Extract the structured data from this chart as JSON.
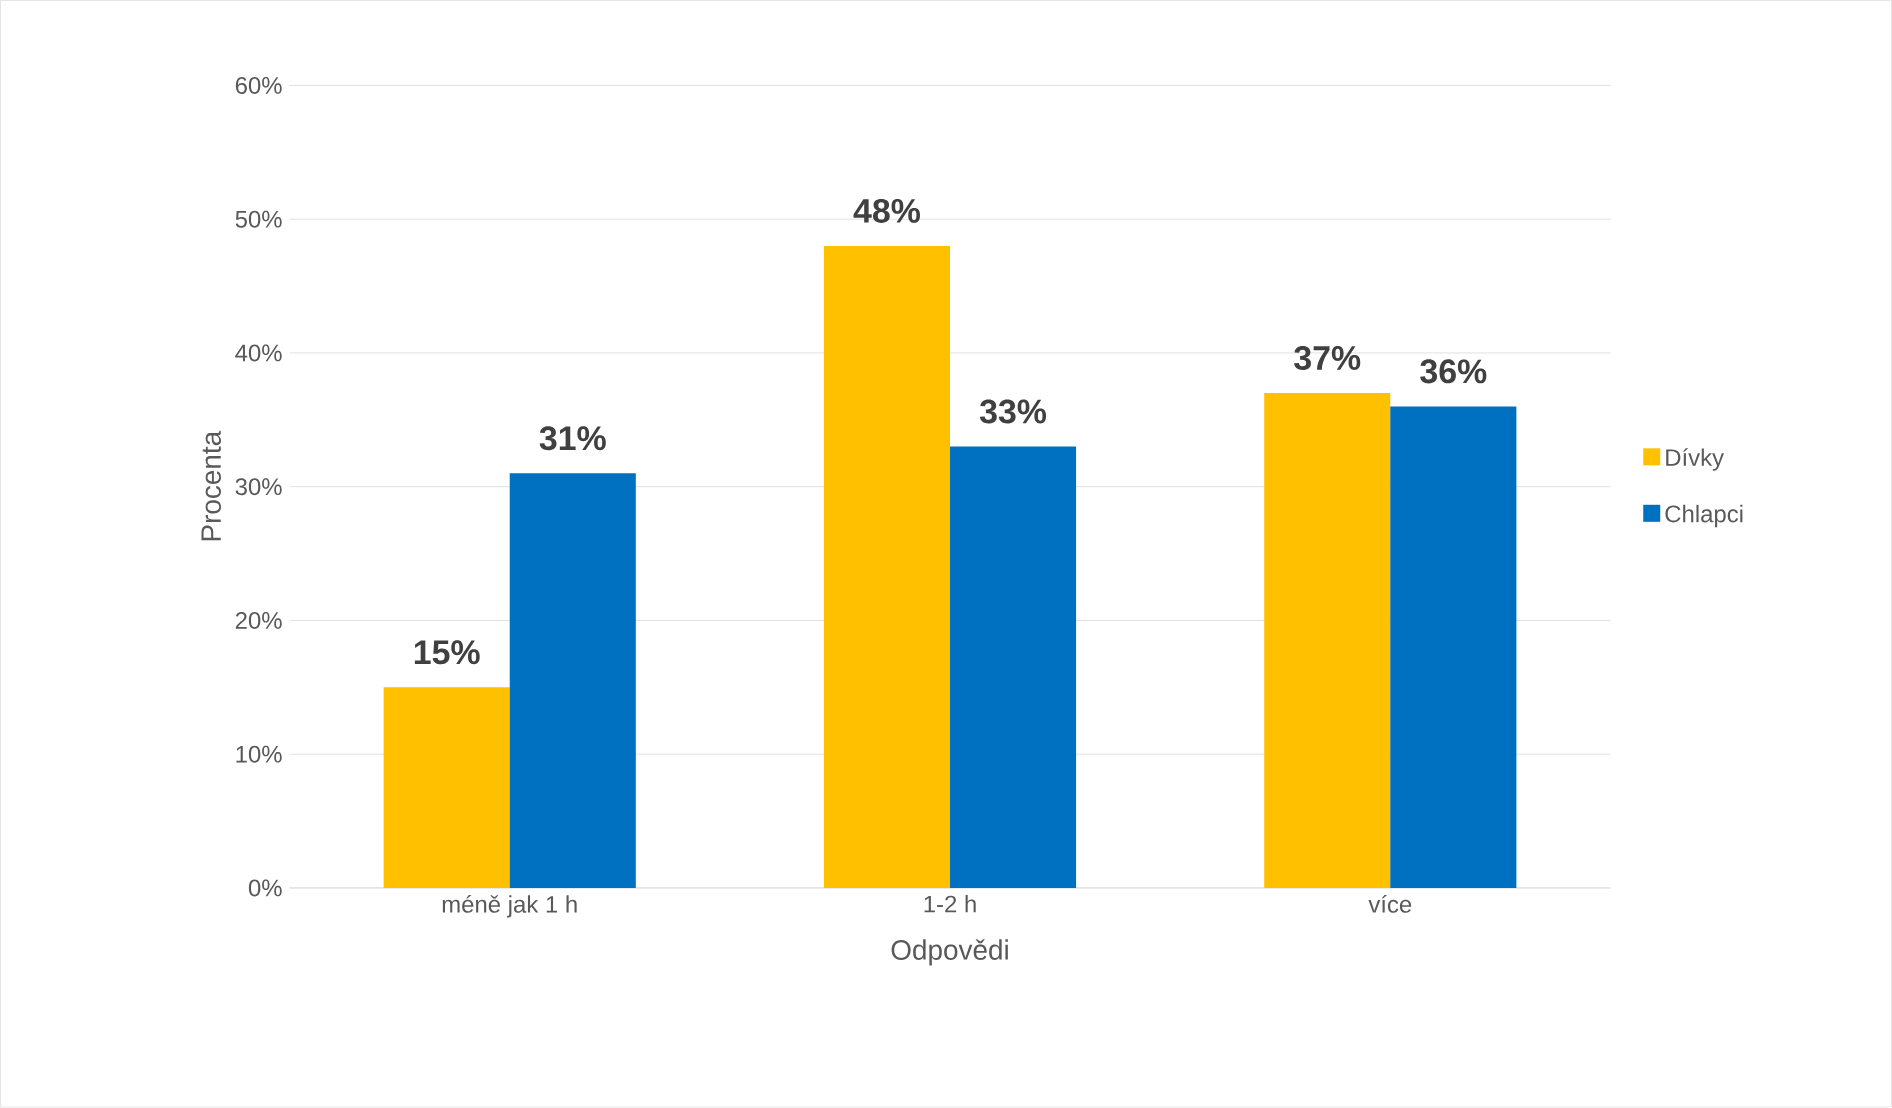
{
  "chart_data": {
    "type": "bar",
    "xlabel": "Odpovědi",
    "ylabel": "Procenta",
    "categories": [
      "méně jak 1 h",
      "1-2 h",
      "více"
    ],
    "series": [
      {
        "name": "Dívky",
        "color": "#ffc000",
        "values": [
          15,
          48,
          37
        ],
        "value_labels": [
          "15%",
          "48%",
          "37%"
        ]
      },
      {
        "name": "Chlapci",
        "color": "#0070c0",
        "values": [
          31,
          33,
          36
        ],
        "value_labels": [
          "31%",
          "33%",
          "36%"
        ]
      }
    ],
    "ylim": [
      0,
      60
    ],
    "yticks": [
      {
        "value": 0,
        "label": "0%"
      },
      {
        "value": 10,
        "label": "10%"
      },
      {
        "value": 20,
        "label": "20%"
      },
      {
        "value": 30,
        "label": "30%"
      },
      {
        "value": 40,
        "label": "40%"
      },
      {
        "value": 50,
        "label": "50%"
      },
      {
        "value": 60,
        "label": "60%"
      }
    ],
    "grid": "y",
    "legend": "right"
  }
}
